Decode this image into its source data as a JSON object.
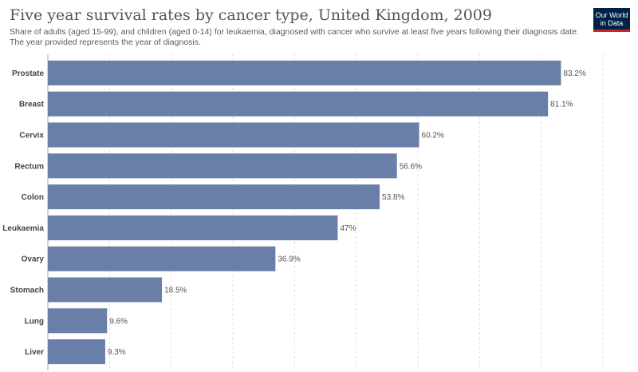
{
  "header": {
    "title": "Five year survival rates by cancer type, United Kingdom, 2009",
    "subtitle": "Share of adults (aged 15-99), and children (aged 0-14) for leukaemia, diagnosed with cancer who survive at least five years following their diagnosis date. The year provided represents the year of diagnosis.",
    "logo_line1": "Our World",
    "logo_line2": "in Data"
  },
  "colors": {
    "bar": "#6a7fa8",
    "grid": "#dddddd",
    "logo_bg": "#002147",
    "logo_accent": "#ce261e"
  },
  "chart_data": {
    "type": "bar",
    "orientation": "horizontal",
    "categories": [
      "Prostate",
      "Breast",
      "Cervix",
      "Rectum",
      "Colon",
      "Leukaemia",
      "Ovary",
      "Stomach",
      "Lung",
      "Liver"
    ],
    "values": [
      83.2,
      81.1,
      60.2,
      56.6,
      53.8,
      47,
      36.9,
      18.5,
      9.6,
      9.3
    ],
    "value_labels": [
      "83.2%",
      "81.1%",
      "60.2%",
      "56.6%",
      "53.8%",
      "47%",
      "36.9%",
      "18.5%",
      "9.6%",
      "9.3%"
    ],
    "unit": "%",
    "xlim": [
      0,
      90
    ],
    "grid": true
  }
}
